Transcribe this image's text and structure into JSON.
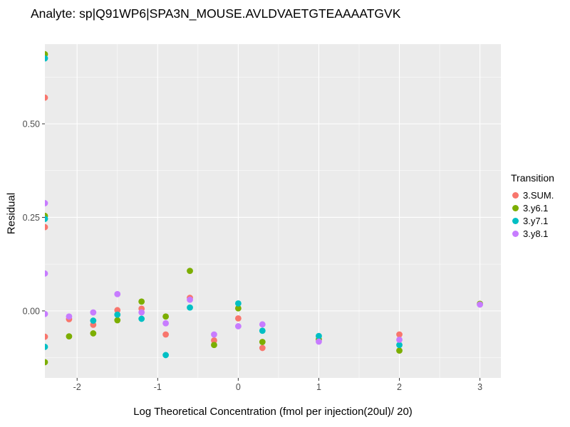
{
  "chart_data": {
    "type": "scatter",
    "title": "Analyte: sp|Q91WP6|SPA3N_MOUSE.AVLDVAETGTEAAAATGVK",
    "xlabel": "Log Theoretical Concentration (fmol per injection(20ul)/ 20)",
    "ylabel": "Residual",
    "xlim": [
      -2.4,
      3.26
    ],
    "ylim": [
      -0.179,
      0.713
    ],
    "grid": true,
    "panel_background": "#EBEBEB",
    "grid_color": "#FFFFFF",
    "tick_color": "#333333",
    "tick_label_color": "#4D4D4D",
    "x_ticks": [
      {
        "value": -2,
        "label": "-2"
      },
      {
        "value": -1,
        "label": "-1"
      },
      {
        "value": 0,
        "label": "0"
      },
      {
        "value": 1,
        "label": "1"
      },
      {
        "value": 2,
        "label": "2"
      },
      {
        "value": 3,
        "label": "3"
      }
    ],
    "y_ticks": [
      {
        "value": 0.0,
        "label": "0.00"
      },
      {
        "value": 0.25,
        "label": "0.25"
      },
      {
        "value": 0.5,
        "label": "0.50"
      }
    ],
    "x_minor": [
      -1.5,
      -0.5,
      0.5,
      1.5,
      2.5
    ],
    "y_minor": [
      -0.125,
      0.125,
      0.375,
      0.625
    ],
    "legend": {
      "title": "Transition",
      "position": "right"
    },
    "series": [
      {
        "name": "3.SUM.",
        "color": "#F8766D",
        "points": [
          [
            -2.4,
            0.57
          ],
          [
            -2.4,
            0.224
          ],
          [
            -2.4,
            -0.069
          ],
          [
            -2.1,
            -0.022
          ],
          [
            -1.8,
            -0.037
          ],
          [
            -1.5,
            0.002
          ],
          [
            -1.2,
            0.006
          ],
          [
            -0.9,
            -0.063
          ],
          [
            -0.6,
            0.035
          ],
          [
            -0.3,
            -0.079
          ],
          [
            0,
            -0.02
          ],
          [
            0.3,
            -0.099
          ],
          [
            2,
            -0.063
          ]
        ]
      },
      {
        "name": "3.y6.1",
        "color": "#7CAE00",
        "points": [
          [
            -2.4,
            0.686
          ],
          [
            -2.4,
            0.254
          ],
          [
            -2.4,
            -0.137
          ],
          [
            -2.1,
            -0.068
          ],
          [
            -1.8,
            -0.06
          ],
          [
            -1.5,
            -0.025
          ],
          [
            -1.2,
            0.025
          ],
          [
            -0.9,
            -0.015
          ],
          [
            -0.6,
            0.107
          ],
          [
            -0.3,
            -0.091
          ],
          [
            0,
            0.007
          ],
          [
            0.3,
            -0.083
          ],
          [
            1,
            -0.076
          ],
          [
            2,
            -0.106
          ],
          [
            3,
            0.019
          ]
        ]
      },
      {
        "name": "3.y7.1",
        "color": "#00BFC4",
        "points": [
          [
            -2.4,
            0.675
          ],
          [
            -2.4,
            0.246
          ],
          [
            -2.4,
            -0.096
          ],
          [
            -1.8,
            -0.026
          ],
          [
            -1.5,
            -0.01
          ],
          [
            -1.2,
            -0.021
          ],
          [
            -0.9,
            -0.118
          ],
          [
            -0.6,
            0.009
          ],
          [
            0,
            0.02
          ],
          [
            0.3,
            -0.053
          ],
          [
            1,
            -0.067
          ],
          [
            2,
            -0.091
          ]
        ]
      },
      {
        "name": "3.y8.1",
        "color": "#C77CFF",
        "points": [
          [
            -2.4,
            0.288
          ],
          [
            -2.4,
            0.1
          ],
          [
            -2.4,
            -0.008
          ],
          [
            -2.1,
            -0.015
          ],
          [
            -1.8,
            -0.004
          ],
          [
            -1.5,
            0.045
          ],
          [
            -1.2,
            -0.004
          ],
          [
            -0.9,
            -0.033
          ],
          [
            -0.6,
            0.03
          ],
          [
            -0.3,
            -0.063
          ],
          [
            0,
            -0.041
          ],
          [
            0.3,
            -0.036
          ],
          [
            1,
            -0.082
          ],
          [
            2,
            -0.077
          ],
          [
            3,
            0.017
          ]
        ]
      }
    ]
  }
}
